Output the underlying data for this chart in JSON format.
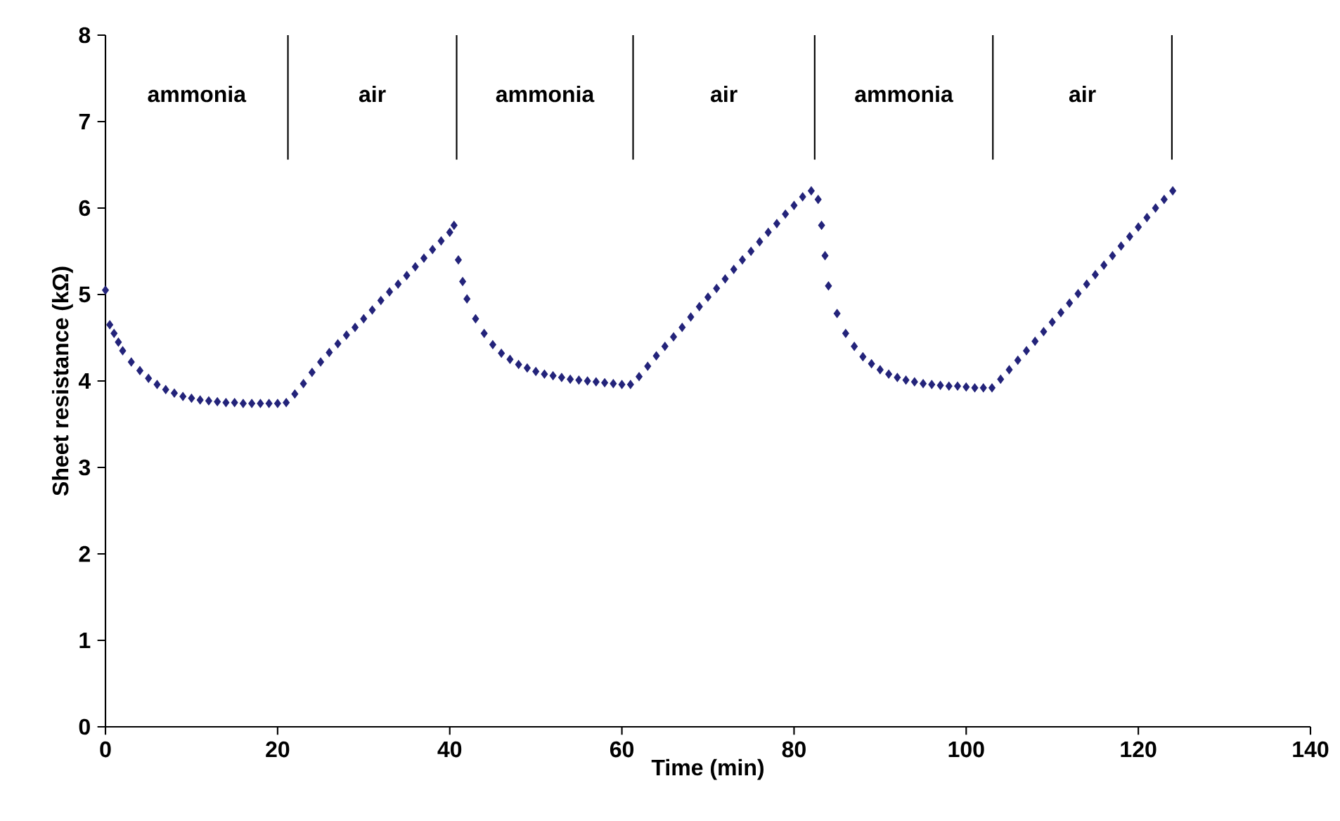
{
  "chart_data": {
    "type": "scatter",
    "xlabel": "Time (min)",
    "ylabel": "Sheet resistance (kΩ)",
    "xlim": [
      0,
      140
    ],
    "ylim": [
      0,
      8
    ],
    "xticks": [
      0,
      20,
      40,
      60,
      80,
      100,
      120,
      140
    ],
    "yticks": [
      0,
      1,
      2,
      3,
      4,
      5,
      6,
      7,
      8
    ],
    "marker": "diamond",
    "grid": false,
    "series": [
      {
        "color": "#23237a",
        "x": [
          0,
          0.5,
          1,
          1.5,
          2,
          3,
          4,
          5,
          6,
          7,
          8,
          9,
          10,
          11,
          12,
          13,
          14,
          15,
          16,
          17,
          18,
          19,
          20,
          21,
          22,
          23,
          24,
          25,
          26,
          27,
          28,
          29,
          30,
          31,
          32,
          33,
          34,
          35,
          36,
          37,
          38,
          39,
          40,
          40.5,
          41,
          41.5,
          42,
          43,
          44,
          45,
          46,
          47,
          48,
          49,
          50,
          51,
          52,
          53,
          54,
          55,
          56,
          57,
          58,
          59,
          60,
          61,
          62,
          63,
          64,
          65,
          66,
          67,
          68,
          69,
          70,
          71,
          72,
          73,
          74,
          75,
          76,
          77,
          78,
          79,
          80,
          81,
          82,
          82.8,
          83.2,
          83.6,
          84,
          85,
          86,
          87,
          88,
          89,
          90,
          91,
          92,
          93,
          94,
          95,
          96,
          97,
          98,
          99,
          100,
          101,
          102,
          103,
          104,
          105,
          106,
          107,
          108,
          109,
          110,
          111,
          112,
          113,
          114,
          115,
          116,
          117,
          118,
          119,
          120,
          121,
          122,
          123,
          124
        ],
        "values": [
          5.05,
          4.65,
          4.55,
          4.45,
          4.35,
          4.22,
          4.12,
          4.03,
          3.96,
          3.9,
          3.86,
          3.82,
          3.8,
          3.78,
          3.77,
          3.76,
          3.75,
          3.75,
          3.74,
          3.74,
          3.74,
          3.74,
          3.74,
          3.75,
          3.85,
          3.97,
          4.1,
          4.22,
          4.33,
          4.43,
          4.53,
          4.62,
          4.72,
          4.82,
          4.93,
          5.03,
          5.12,
          5.22,
          5.32,
          5.42,
          5.52,
          5.62,
          5.72,
          5.8,
          5.4,
          5.15,
          4.95,
          4.72,
          4.55,
          4.42,
          4.32,
          4.25,
          4.19,
          4.15,
          4.11,
          4.08,
          4.06,
          4.04,
          4.02,
          4.01,
          4.0,
          3.99,
          3.98,
          3.97,
          3.96,
          3.96,
          4.05,
          4.17,
          4.29,
          4.4,
          4.51,
          4.62,
          4.74,
          4.86,
          4.97,
          5.07,
          5.18,
          5.29,
          5.4,
          5.5,
          5.61,
          5.72,
          5.82,
          5.93,
          6.03,
          6.13,
          6.2,
          6.1,
          5.8,
          5.45,
          5.1,
          4.78,
          4.55,
          4.4,
          4.28,
          4.2,
          4.13,
          4.08,
          4.04,
          4.01,
          3.99,
          3.97,
          3.96,
          3.95,
          3.94,
          3.94,
          3.93,
          3.92,
          3.92,
          3.92,
          4.02,
          4.13,
          4.24,
          4.35,
          4.46,
          4.57,
          4.68,
          4.79,
          4.9,
          5.01,
          5.12,
          5.23,
          5.34,
          5.45,
          5.56,
          5.67,
          5.78,
          5.89,
          6.0,
          6.1,
          6.2
        ]
      }
    ],
    "ref_lines": [
      {
        "axis": "x",
        "value": 21.2,
        "color": "#000000"
      },
      {
        "axis": "x",
        "value": 40.8,
        "color": "#000000"
      },
      {
        "axis": "x",
        "value": 61.3,
        "color": "#000000"
      },
      {
        "axis": "x",
        "value": 82.4,
        "color": "#000000"
      },
      {
        "axis": "x",
        "value": 103.1,
        "color": "#000000"
      },
      {
        "axis": "x",
        "value": 123.9,
        "color": "#000000"
      }
    ],
    "annotations": [
      "ammonia",
      "air",
      "ammonia",
      "air",
      "ammonia",
      "air"
    ]
  }
}
